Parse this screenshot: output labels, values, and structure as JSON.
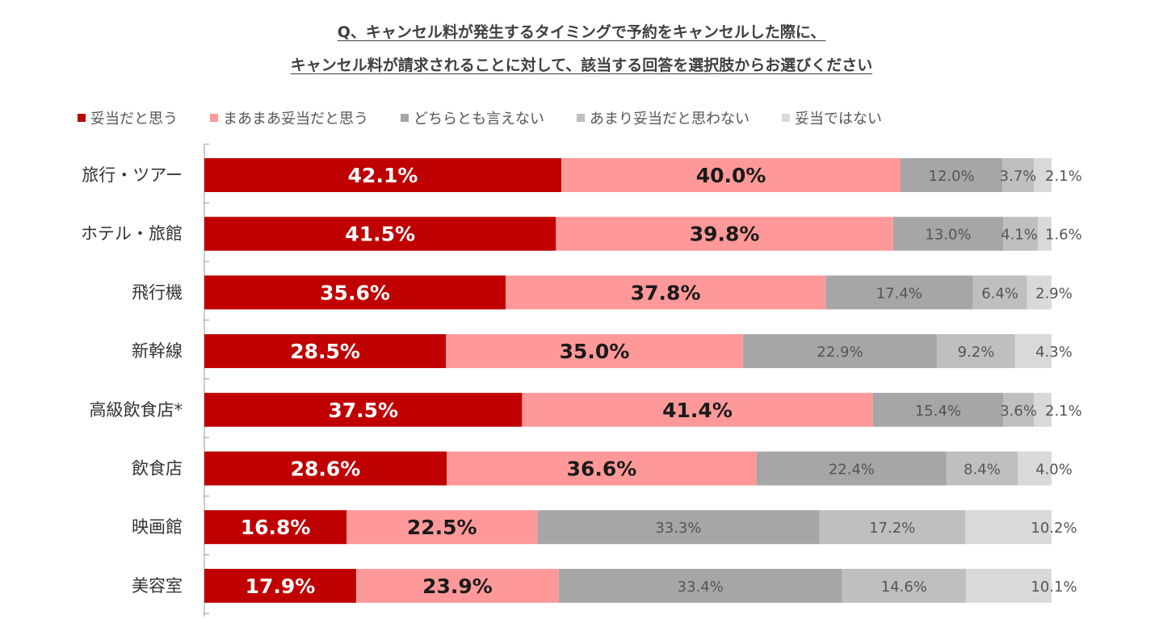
{
  "chart_data": {
    "type": "bar",
    "orientation": "horizontal",
    "stacked": "100%",
    "title": [
      "Q、キャンセル料が発生するタイミングで予約をキャンセルした際に、",
      "キャンセル料が請求されることに対して、該当する回答を選択肢からお選びください"
    ],
    "legend_position": "top",
    "categories": [
      "旅行・ツアー",
      "ホテル・旅館",
      "飛行機",
      "新幹線",
      "高級飲食店*",
      "飲食店",
      "映画館",
      "美容室"
    ],
    "series": [
      {
        "name": "妥当だと思う",
        "color": "#c00000",
        "label_color": "#ffffff",
        "values": [
          42.1,
          41.5,
          35.6,
          28.5,
          37.5,
          28.6,
          16.8,
          17.9
        ]
      },
      {
        "name": "まあまあ妥当だと思う",
        "color": "#ff9999",
        "label_color": "#1a1a1a",
        "values": [
          40.0,
          39.8,
          37.8,
          35.0,
          41.4,
          36.6,
          22.5,
          23.9
        ]
      },
      {
        "name": "どちらとも言えない",
        "color": "#a6a6a6",
        "label_color": "#555555",
        "values": [
          12.0,
          13.0,
          17.4,
          22.9,
          15.4,
          22.4,
          33.3,
          33.4
        ]
      },
      {
        "name": "あまり妥当だと思わない",
        "color": "#bfbfbf",
        "label_color": "#555555",
        "values": [
          3.7,
          4.1,
          6.4,
          9.2,
          3.6,
          8.4,
          17.2,
          14.6
        ]
      },
      {
        "name": "妥当ではない",
        "color": "#d9d9d9",
        "label_color": "#555555",
        "values": [
          2.1,
          1.6,
          2.9,
          4.3,
          2.1,
          4.0,
          10.2,
          10.1
        ]
      }
    ],
    "xlim": [
      0,
      100
    ],
    "value_format": "{v}%"
  }
}
